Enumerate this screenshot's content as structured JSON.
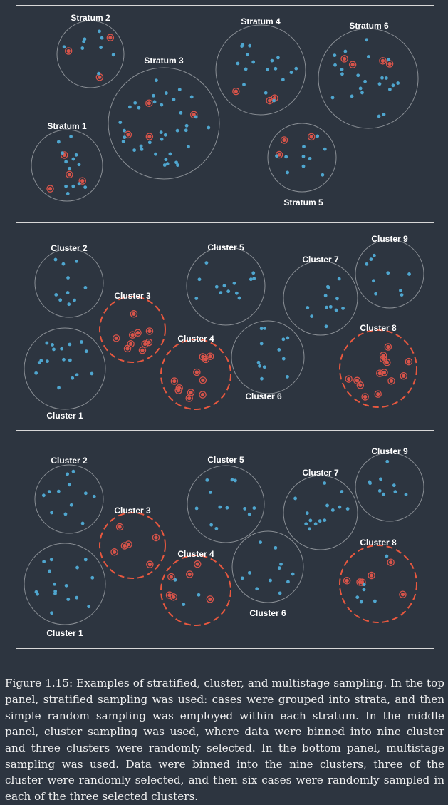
{
  "colors": {
    "background": "#2d3540",
    "panel_border": "#d8d8d8",
    "circle_stroke": "#8a8f95",
    "point": "#4fa6cf",
    "sampled_point": "#d9544a",
    "selected_cluster_stroke": "#e8583f",
    "text": "#ffffff"
  },
  "panels": [
    {
      "id": "stratified",
      "groups": [
        {
          "label": "Stratum 1",
          "selected": false,
          "points": 17,
          "sampled": 4
        },
        {
          "label": "Stratum 2",
          "selected": false,
          "points": 12,
          "sampled": 3
        },
        {
          "label": "Stratum 3",
          "selected": false,
          "points": 40,
          "sampled": 4
        },
        {
          "label": "Stratum 4",
          "selected": false,
          "points": 20,
          "sampled": 3
        },
        {
          "label": "Stratum 5",
          "selected": false,
          "points": 13,
          "sampled": 3
        },
        {
          "label": "Stratum 6",
          "selected": false,
          "points": 26,
          "sampled": 4
        }
      ]
    },
    {
      "id": "cluster",
      "groups": [
        {
          "label": "Cluster 1",
          "selected": false,
          "points": 17,
          "sampled": 0
        },
        {
          "label": "Cluster 2",
          "selected": false,
          "points": 10,
          "sampled": 0
        },
        {
          "label": "Cluster 3",
          "selected": true,
          "points": 10,
          "sampled": 10
        },
        {
          "label": "Cluster 4",
          "selected": true,
          "points": 11,
          "sampled": 11
        },
        {
          "label": "Cluster 5",
          "selected": false,
          "points": 13,
          "sampled": 0
        },
        {
          "label": "Cluster 6",
          "selected": false,
          "points": 12,
          "sampled": 0
        },
        {
          "label": "Cluster 7",
          "selected": false,
          "points": 12,
          "sampled": 0
        },
        {
          "label": "Cluster 8",
          "selected": true,
          "points": 14,
          "sampled": 14
        },
        {
          "label": "Cluster 9",
          "selected": false,
          "points": 9,
          "sampled": 0
        }
      ]
    },
    {
      "id": "multistage",
      "groups": [
        {
          "label": "Cluster 1",
          "selected": false,
          "points": 16,
          "sampled": 0
        },
        {
          "label": "Cluster 2",
          "selected": false,
          "points": 12,
          "sampled": 0
        },
        {
          "label": "Cluster 3",
          "selected": true,
          "points": 6,
          "sampled": 6
        },
        {
          "label": "Cluster 4",
          "selected": true,
          "points": 9,
          "sampled": 6
        },
        {
          "label": "Cluster 5",
          "selected": false,
          "points": 12,
          "sampled": 0
        },
        {
          "label": "Cluster 6",
          "selected": false,
          "points": 11,
          "sampled": 0
        },
        {
          "label": "Cluster 7",
          "selected": false,
          "points": 14,
          "sampled": 0
        },
        {
          "label": "Cluster 8",
          "selected": true,
          "points": 12,
          "sampled": 6
        },
        {
          "label": "Cluster 9",
          "selected": false,
          "points": 9,
          "sampled": 0
        }
      ]
    }
  ],
  "caption": "Figure 1.15: Examples of stratified, cluster, and multistage sampling. In the top panel, stratified sampling was used: cases were grouped into strata, and then simple random sampling was employed within each stratum. In the middle panel, cluster sampling was used, where data were binned into nine cluster and three clusters were randomly selected. In the bottom panel, multistage sampling was used. Data were binned into the nine clusters, three of the cluster were randomly selected, and then six cases were randomly sampled in each of the three selected clusters."
}
